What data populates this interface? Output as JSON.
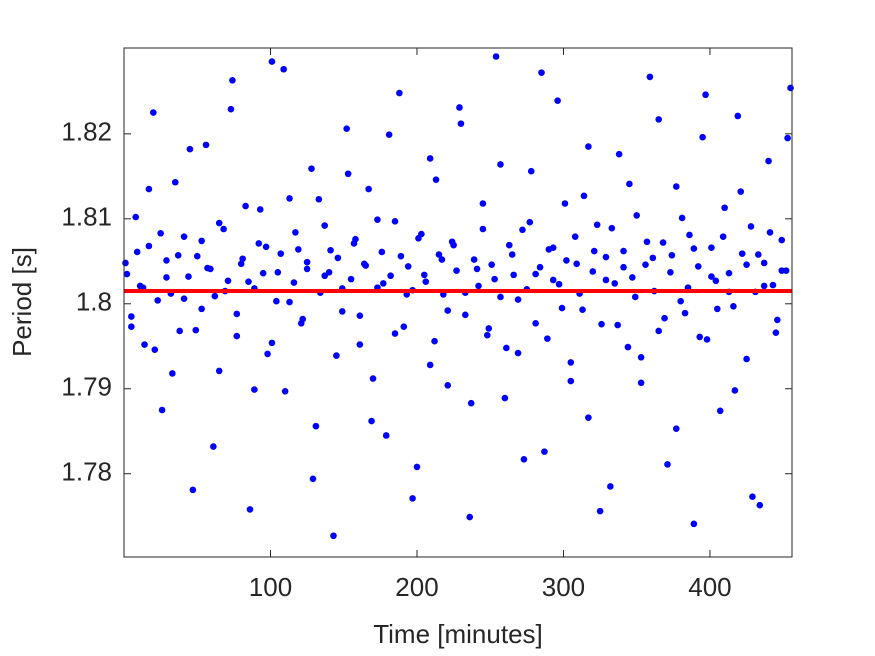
{
  "chart_data": {
    "type": "scatter",
    "xlabel": "Time [minutes]",
    "ylabel": "Period [s]",
    "color": "#0000ff",
    "x": [
      2,
      5,
      8,
      11,
      14,
      17,
      20,
      23,
      26,
      29,
      32,
      35,
      38,
      41,
      44,
      47,
      50,
      53,
      56,
      59,
      62,
      65,
      68,
      71,
      74,
      77,
      80,
      83,
      86,
      89,
      92,
      95,
      98,
      101,
      104,
      107,
      110,
      113,
      116,
      119,
      122,
      125,
      128,
      131,
      134,
      137,
      140,
      143,
      146,
      149,
      152,
      155,
      158,
      161,
      164,
      167,
      170,
      173,
      176,
      179,
      182,
      185,
      188,
      191,
      194,
      197,
      200,
      203,
      206,
      209,
      212,
      215,
      218,
      221,
      224,
      227,
      230,
      233,
      236,
      239,
      242,
      245,
      248,
      251,
      254,
      257,
      260,
      263,
      266,
      269,
      272,
      275,
      278,
      281,
      284,
      287,
      290,
      293,
      296,
      299,
      302,
      305,
      308,
      311,
      314,
      317,
      320,
      323,
      326,
      329,
      332,
      335,
      338,
      341,
      344,
      347,
      350,
      353,
      356,
      359,
      362,
      365,
      368,
      371,
      374,
      377,
      380,
      383,
      386,
      389,
      392,
      395,
      398,
      401,
      404,
      407,
      410,
      413,
      416,
      419,
      422,
      425,
      428,
      431,
      434,
      437,
      440,
      443,
      446,
      449,
      452,
      455,
      1,
      5,
      9,
      13,
      17,
      21,
      25,
      29,
      33,
      37,
      41,
      45,
      49,
      53,
      57,
      61,
      65,
      69,
      73,
      77,
      81,
      85,
      89,
      93,
      97,
      101,
      105,
      109,
      113,
      117,
      121,
      125,
      129,
      133,
      137,
      141,
      145,
      149,
      153,
      157,
      161,
      165,
      169,
      173,
      177,
      181,
      185,
      189,
      193,
      197,
      201,
      205,
      209,
      213,
      217,
      221,
      225,
      229,
      233,
      237,
      241,
      245,
      249,
      253,
      257,
      261,
      265,
      269,
      273,
      277,
      281,
      285,
      289,
      293,
      297,
      301,
      305,
      309,
      313,
      317,
      321,
      325,
      329,
      333,
      337,
      341,
      345,
      349,
      353,
      357,
      361,
      365,
      369,
      373,
      377,
      381,
      385,
      389,
      393,
      397,
      401,
      405,
      409,
      413,
      417,
      421,
      425,
      429,
      433,
      437,
      441,
      445,
      449,
      453
    ],
    "values": [
      1.8035,
      1.7985,
      1.8102,
      1.8021,
      1.7952,
      1.8068,
      1.8225,
      1.8004,
      1.7875,
      1.8051,
      1.8012,
      1.8143,
      1.7968,
      1.8079,
      1.8032,
      1.7781,
      1.8056,
      1.7994,
      1.8187,
      1.8041,
      1.8009,
      1.7921,
      1.8088,
      1.8027,
      1.8263,
      1.7962,
      1.8047,
      1.8115,
      1.7758,
      1.8018,
      1.8071,
      1.8036,
      1.7941,
      1.8285,
      1.8003,
      1.8059,
      1.7897,
      1.8124,
      1.8025,
      1.8064,
      1.7982,
      1.8041,
      1.8159,
      1.7856,
      1.8013,
      1.8092,
      1.8037,
      1.7727,
      1.8054,
      1.7991,
      1.8206,
      1.8029,
      1.8076,
      1.7952,
      1.8047,
      1.8135,
      1.7912,
      1.8019,
      1.8061,
      1.7845,
      1.8033,
      1.8097,
      1.8248,
      1.7973,
      1.8044,
      1.8016,
      1.7808,
      1.8082,
      1.8026,
      1.8171,
      1.7956,
      1.8058,
      1.8011,
      1.7904,
      1.8073,
      1.8039,
      1.8212,
      1.7987,
      1.7749,
      1.8052,
      1.8021,
      1.8118,
      1.7963,
      1.8046,
      1.8291,
      1.8008,
      1.7889,
      1.8069,
      1.8034,
      1.7942,
      1.8087,
      1.8017,
      1.8156,
      1.7977,
      1.8043,
      1.7826,
      1.8064,
      1.8028,
      1.8239,
      1.7995,
      1.8051,
      1.7931,
      1.8079,
      1.8012,
      1.8127,
      1.7866,
      1.8038,
      1.8093,
      1.7976,
      1.8055,
      1.7785,
      1.8024,
      1.8176,
      1.8062,
      1.7949,
      1.8031,
      1.8104,
      1.7907,
      1.8046,
      1.8267,
      1.8015,
      1.7968,
      1.8072,
      1.7811,
      1.8057,
      1.8138,
      1.8003,
      1.7989,
      1.8081,
      1.7741,
      1.8044,
      1.8196,
      1.7958,
      1.8066,
      1.8027,
      1.7874,
      1.8113,
      1.8036,
      1.7997,
      1.8221,
      1.8059,
      1.7935,
      1.8091,
      1.8014,
      1.7763,
      1.8048,
      1.8168,
      1.8022,
      1.7981,
      1.8075,
      1.8039,
      1.8254,
      1.8048,
      1.7973,
      1.8061,
      1.8019,
      1.8135,
      1.7946,
      1.8083,
      1.8031,
      1.7918,
      1.8057,
      1.8006,
      1.8182,
      1.7969,
      1.8074,
      1.8042,
      1.7832,
      1.8095,
      1.8015,
      1.8229,
      1.7988,
      1.8053,
      1.8026,
      1.7899,
      1.8111,
      1.8067,
      1.7954,
      1.8037,
      1.8276,
      1.8002,
      1.8084,
      1.7977,
      1.8049,
      1.7794,
      1.8123,
      1.8033,
      1.8063,
      1.7939,
      1.8018,
      1.8153,
      1.8071,
      1.7986,
      1.8045,
      1.7862,
      1.8099,
      1.8024,
      1.8199,
      1.7965,
      1.8056,
      1.8011,
      1.7771,
      1.8077,
      1.8034,
      1.7928,
      1.8146,
      1.8052,
      1.7992,
      1.8069,
      1.8231,
      1.8013,
      1.7883,
      1.8041,
      1.8088,
      1.7971,
      1.8029,
      1.8164,
      1.7948,
      1.8058,
      1.8005,
      1.7817,
      1.8096,
      1.8035,
      1.8272,
      1.7959,
      1.8066,
      1.8023,
      1.8118,
      1.7909,
      1.8047,
      1.7993,
      1.8185,
      1.8062,
      1.7756,
      1.8028,
      1.8089,
      1.7975,
      1.8043,
      1.8141,
      1.8008,
      1.7937,
      1.8073,
      1.8054,
      1.8217,
      1.7983,
      1.8037,
      1.7853,
      1.8101,
      1.8019,
      1.8065,
      1.7961,
      1.8246,
      1.8032,
      1.7994,
      1.8079,
      1.8014,
      1.7898,
      1.8132,
      1.8046,
      1.7773,
      1.8058,
      1.8021,
      1.8084,
      1.7966,
      1.8039,
      1.8195
    ],
    "mean_line": {
      "value": 1.8015,
      "color": "#ff0000"
    },
    "xlim": [
      0,
      456
    ],
    "ylim": [
      1.7702,
      1.8301
    ],
    "xticks": [
      100,
      200,
      300,
      400
    ],
    "yticks": [
      1.78,
      1.79,
      1.8,
      1.81,
      1.82
    ],
    "grid": false
  }
}
